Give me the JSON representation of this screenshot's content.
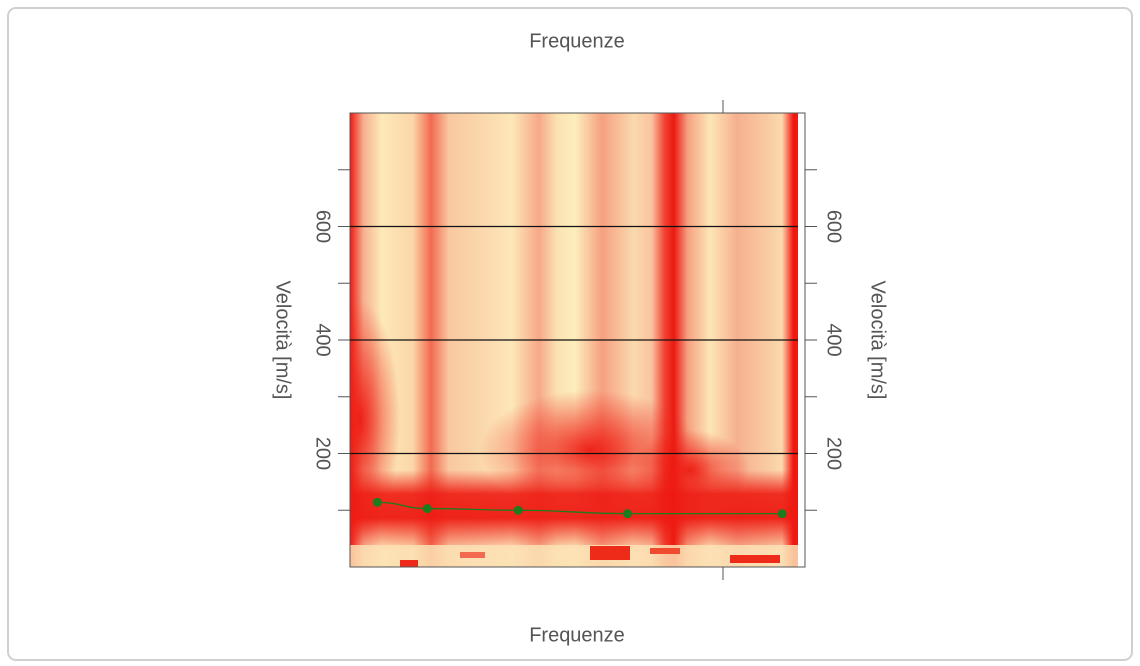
{
  "chart_data": {
    "type": "scatter",
    "title": "Frequenze",
    "xlabel": "Frequenze",
    "ylabel": "Velocità [m/s]",
    "x": [
      6,
      17,
      37,
      61,
      95
    ],
    "values": [
      114,
      103,
      100,
      94,
      94
    ],
    "color": "#1e7b1e",
    "xlim": [
      0,
      100
    ],
    "ylim": [
      0,
      800
    ],
    "yticks": [
      200,
      400,
      600
    ],
    "grid": true
  }
}
